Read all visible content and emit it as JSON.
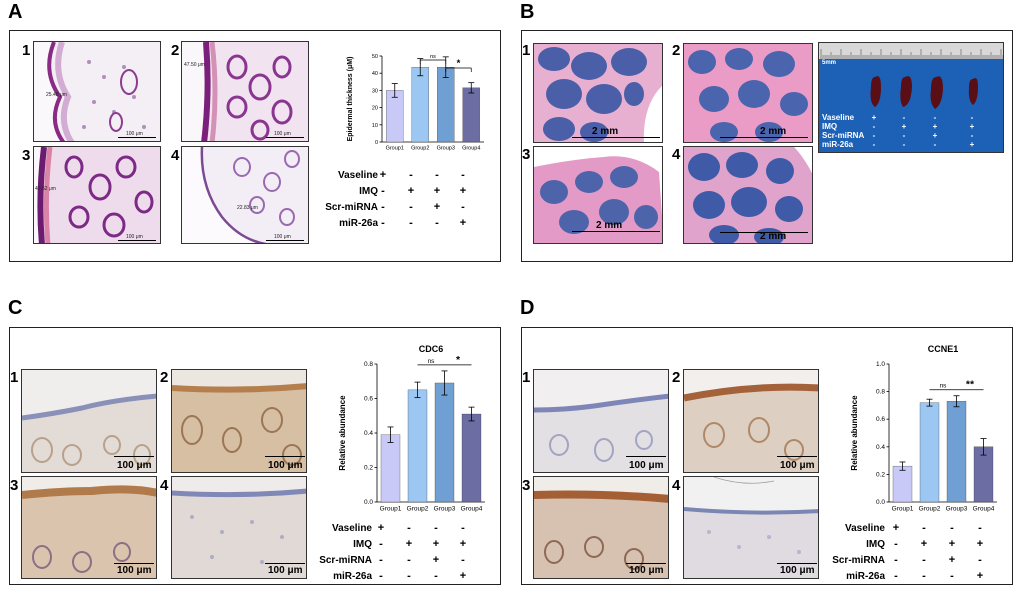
{
  "panels": {
    "A": {
      "letter": "A",
      "image_numbers": [
        "1",
        "2",
        "3",
        "4"
      ],
      "measurements": [
        "25.48 μm",
        "47.50 μm",
        "49.52 μm",
        "22.83 μm"
      ],
      "scale_labels": [
        "100 μm",
        "100 μm",
        "100 μm",
        "100 μm"
      ]
    },
    "B": {
      "letter": "B",
      "image_numbers": [
        "1",
        "2",
        "3",
        "4"
      ],
      "scale_labels": [
        "2 mm",
        "2 mm",
        "2 mm",
        "2 mm"
      ],
      "spleen": {
        "ruler_label": "5mm",
        "rows": [
          {
            "label": "Vaseline",
            "marks": [
              "+",
              "-",
              "-",
              "-"
            ]
          },
          {
            "label": "IMQ",
            "marks": [
              "-",
              "+",
              "+",
              "+"
            ]
          },
          {
            "label": "Scr-miRNA",
            "marks": [
              "-",
              "-",
              "+",
              "-"
            ]
          },
          {
            "label": "miR-26a",
            "marks": [
              "-",
              "-",
              "-",
              "+"
            ]
          }
        ]
      }
    },
    "C": {
      "letter": "C",
      "image_numbers": [
        "1",
        "2",
        "3",
        "4"
      ],
      "scale_labels": [
        "100 μm",
        "100 μm",
        "100 μm",
        "100 μm"
      ]
    },
    "D": {
      "letter": "D",
      "image_numbers": [
        "1",
        "2",
        "3",
        "4"
      ],
      "scale_labels": [
        "100 μm",
        "100 μm",
        "100 μm",
        "100 μm"
      ]
    }
  },
  "treatment_rows": [
    {
      "label": "Vaseline",
      "marks": [
        "+",
        "-",
        "-",
        "-"
      ]
    },
    {
      "label": "IMQ",
      "marks": [
        "-",
        "+",
        "+",
        "+"
      ]
    },
    {
      "label": "Scr-miRNA",
      "marks": [
        "-",
        "-",
        "+",
        "-"
      ]
    },
    {
      "label": "miR-26a",
      "marks": [
        "-",
        "-",
        "-",
        "+"
      ]
    }
  ],
  "colors": {
    "group1": "#c9c9f7",
    "group2": "#9bc7f2",
    "group3": "#6f9fd3",
    "group4": "#6b6da3"
  },
  "chart_data": [
    {
      "type": "bar",
      "panel": "A",
      "title": "",
      "ylabel": "Epidermal thickness (μM)",
      "categories": [
        "Group1",
        "Group2",
        "Group3",
        "Group4"
      ],
      "values": [
        30,
        43.5,
        43.5,
        31.5
      ],
      "errors": [
        4,
        5,
        6,
        3
      ],
      "ylim": [
        0,
        50
      ],
      "yticks": [
        "0",
        "10",
        "20",
        "30",
        "40",
        "50"
      ],
      "significance": [
        {
          "from": 1,
          "to": 2,
          "label": "ns"
        },
        {
          "from": 2,
          "to": 3,
          "label": "*"
        }
      ]
    },
    {
      "type": "bar",
      "panel": "C",
      "title": "CDC6",
      "ylabel": "Relative abundance",
      "categories": [
        "Group1",
        "Group2",
        "Group3",
        "Group4"
      ],
      "values": [
        0.39,
        0.65,
        0.69,
        0.51
      ],
      "errors": [
        0.045,
        0.045,
        0.07,
        0.04
      ],
      "ylim": [
        0,
        0.8
      ],
      "yticks": [
        "0.0",
        "0.2",
        "0.4",
        "0.6",
        "0.8"
      ],
      "significance": [
        {
          "from": 1,
          "to": 2,
          "label": "ns"
        },
        {
          "from": 2,
          "to": 3,
          "label": "*"
        }
      ]
    },
    {
      "type": "bar",
      "panel": "D",
      "title": "CCNE1",
      "ylabel": "Relative abundance",
      "categories": [
        "Group1",
        "Group2",
        "Group3",
        "Group4"
      ],
      "values": [
        0.26,
        0.72,
        0.73,
        0.4
      ],
      "errors": [
        0.03,
        0.025,
        0.04,
        0.06
      ],
      "ylim": [
        0,
        1.0
      ],
      "yticks": [
        "0.0",
        "0.2",
        "0.4",
        "0.6",
        "0.8",
        "1.0"
      ],
      "significance": [
        {
          "from": 1,
          "to": 2,
          "label": "ns"
        },
        {
          "from": 2,
          "to": 3,
          "label": "**"
        }
      ]
    }
  ]
}
